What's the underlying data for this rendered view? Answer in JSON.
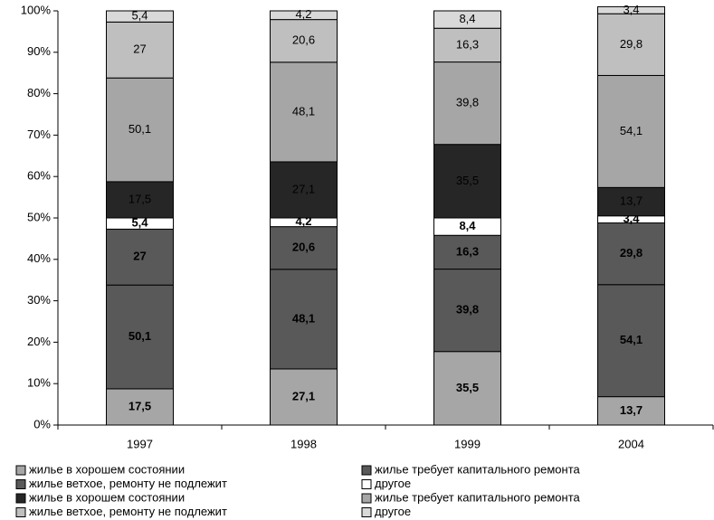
{
  "chart_data": {
    "type": "stacked_bar",
    "categories": [
      "1997",
      "1998",
      "1999",
      "2004"
    ],
    "ylim": [
      0,
      200
    ],
    "yticks": [
      {
        "value": 0,
        "label": "0%"
      },
      {
        "value": 20,
        "label": "10%"
      },
      {
        "value": 40,
        "label": "20%"
      },
      {
        "value": 60,
        "label": "30%"
      },
      {
        "value": 80,
        "label": "40%"
      },
      {
        "value": 100,
        "label": "50%"
      },
      {
        "value": 120,
        "label": "60%"
      },
      {
        "value": 140,
        "label": "70%"
      },
      {
        "value": 160,
        "label": "80%"
      },
      {
        "value": 180,
        "label": "90%"
      },
      {
        "value": 200,
        "label": "100%"
      }
    ],
    "series": [
      {
        "name": "жилье в хорошем состоянии",
        "color": "#a6a6a6",
        "values": [
          17.5,
          27.1,
          35.5,
          13.7
        ],
        "value_labels": [
          "17,5",
          "27,1",
          "35,5",
          "13,7"
        ]
      },
      {
        "name": "жилье требует капитального ремонта",
        "color": "#595959",
        "values": [
          50.1,
          48.1,
          39.8,
          54.1
        ],
        "value_labels": [
          "50,1",
          "48,1",
          "39,8",
          "54,1"
        ]
      },
      {
        "name": "жилье ветхое, ремонту не подлежит",
        "color": "#595959",
        "values": [
          27,
          20.6,
          16.3,
          29.8
        ],
        "value_labels": [
          "27",
          "20,6",
          "16,3",
          "29,8"
        ]
      },
      {
        "name": "другое",
        "color": "#ffffff",
        "values": [
          5.4,
          4.2,
          8.4,
          3.4
        ],
        "value_labels": [
          "5,4",
          "4,2",
          "8,4",
          "3,4"
        ]
      },
      {
        "name": "жилье в хорошем состоянии",
        "color": "#262626",
        "values": [
          17.5,
          27.1,
          35.5,
          13.7
        ],
        "value_labels": [
          "17,5",
          "27,1",
          "35,5",
          "13,7"
        ]
      },
      {
        "name": "жилье требует капитального ремонта",
        "color": "#a6a6a6",
        "values": [
          50.1,
          48.1,
          39.8,
          54.1
        ],
        "value_labels": [
          "50,1",
          "48,1",
          "39,8",
          "54,1"
        ]
      },
      {
        "name": "жилье ветхое, ремонту не подлежит",
        "color": "#bfbfbf",
        "values": [
          27,
          20.6,
          16.3,
          29.8
        ],
        "value_labels": [
          "27",
          "20,6",
          "16,3",
          "29,8"
        ]
      },
      {
        "name": "другое",
        "color": "#d9d9d9",
        "values": [
          5.4,
          4.2,
          8.4,
          3.4
        ],
        "value_labels": [
          "5,4",
          "4,2",
          "8,4",
          "3,4"
        ]
      }
    ]
  }
}
